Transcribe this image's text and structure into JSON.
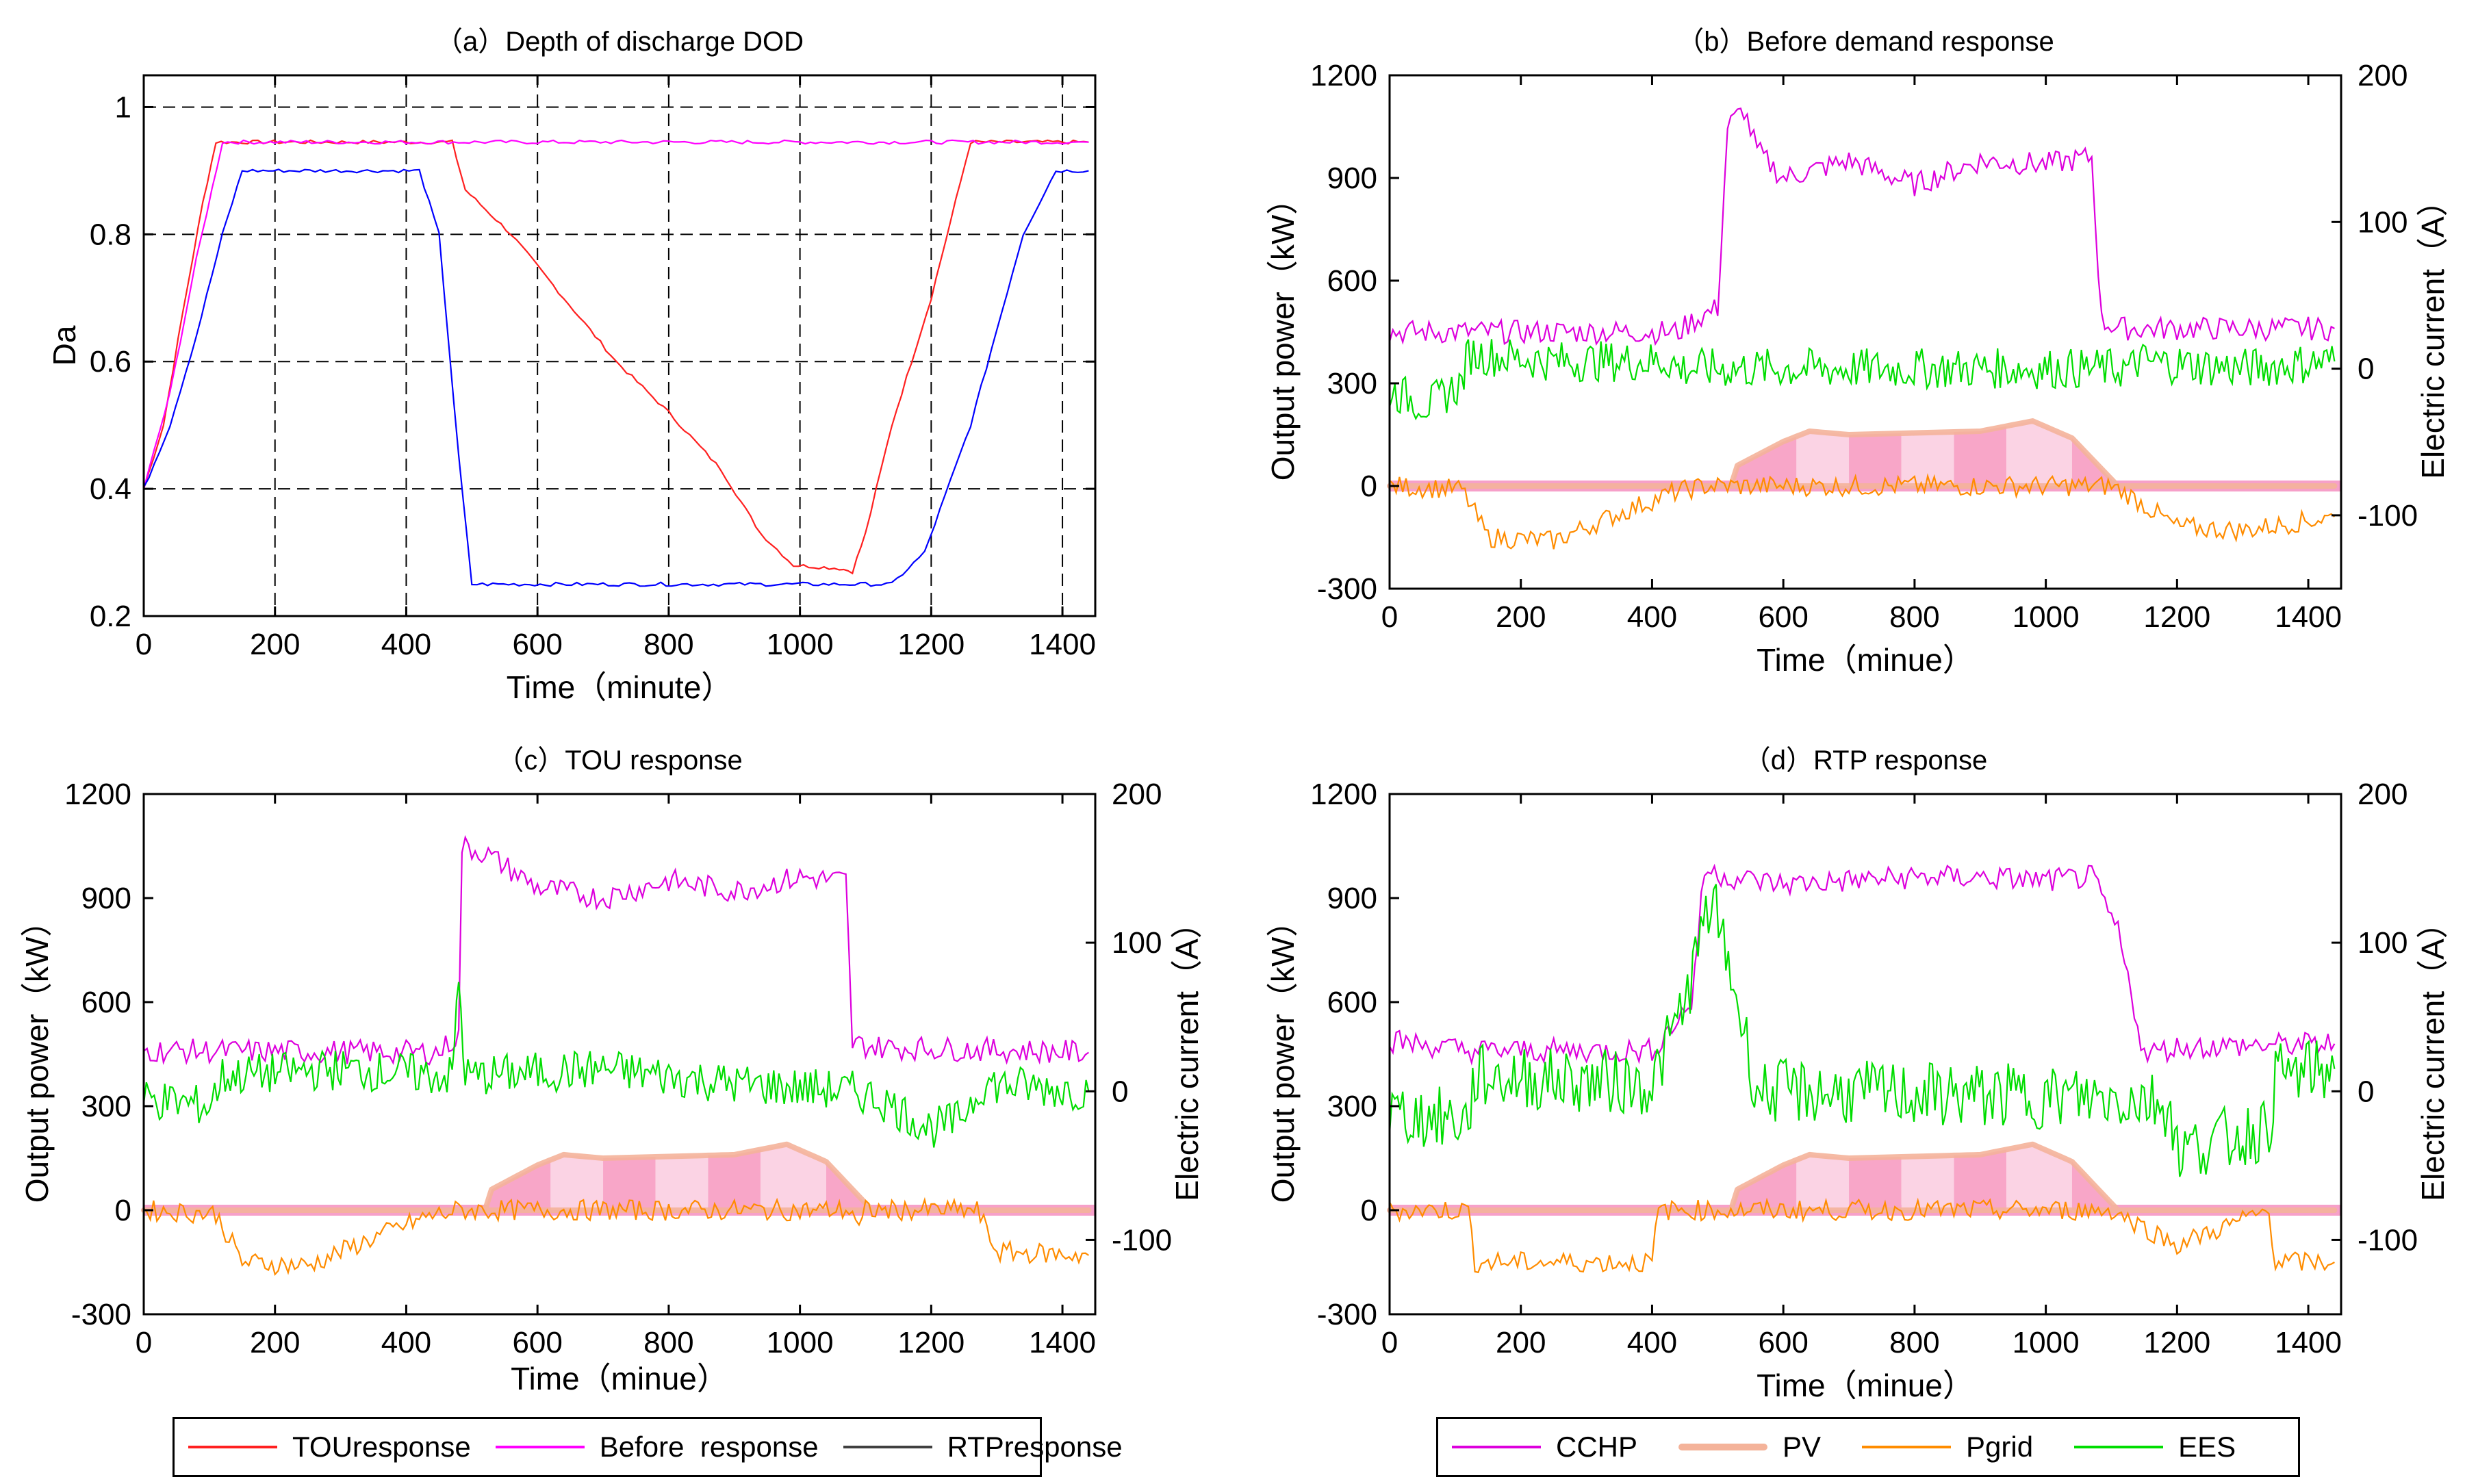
{
  "colors": {
    "TOU": "#ff2020",
    "Before": "#ff00ff",
    "RTP": "#0000ff",
    "CCHP": "#dd00dd",
    "PV_fill_dark": "#f8a6c8",
    "PV_fill_light": "#fbd3e4",
    "PV_edge": "#f4b39a",
    "Pgrid": "#ff8c00",
    "EES": "#00dd00"
  },
  "chart_data": [
    {
      "id": "a",
      "type": "line",
      "title": "（a）Depth of discharge DOD",
      "xlabel": "Time（minute）",
      "ylabel": "Da",
      "xlim": [
        0,
        1450
      ],
      "ylim": [
        0.2,
        1.05
      ],
      "xticks": [
        0,
        200,
        400,
        600,
        800,
        1000,
        1200,
        1400
      ],
      "yticks": [
        0.2,
        0.4,
        0.6,
        0.8,
        1
      ],
      "ytick_labels": [
        "0.2",
        "0.4",
        "0.6",
        "0.8",
        "1"
      ],
      "grid": "dashed",
      "series": [
        {
          "name": "TOUresponse",
          "color": "#ff2020",
          "points": [
            [
              0,
              0.4
            ],
            [
              30,
              0.5
            ],
            [
              60,
              0.68
            ],
            [
              90,
              0.85
            ],
            [
              110,
              0.945
            ],
            [
              470,
              0.945
            ],
            [
              490,
              0.87
            ],
            [
              560,
              0.8
            ],
            [
              640,
              0.7
            ],
            [
              720,
              0.6
            ],
            [
              800,
              0.52
            ],
            [
              880,
              0.43
            ],
            [
              940,
              0.33
            ],
            [
              990,
              0.28
            ],
            [
              1060,
              0.275
            ],
            [
              1080,
              0.27
            ],
            [
              1100,
              0.33
            ],
            [
              1140,
              0.5
            ],
            [
              1200,
              0.7
            ],
            [
              1260,
              0.945
            ],
            [
              1440,
              0.945
            ]
          ]
        },
        {
          "name": "Before  response",
          "color": "#ff00ff",
          "points": [
            [
              0,
              0.4
            ],
            [
              40,
              0.55
            ],
            [
              80,
              0.76
            ],
            [
              120,
              0.945
            ],
            [
              1440,
              0.945
            ]
          ]
        },
        {
          "name": "RTPresponse",
          "color": "#0000ff",
          "points": [
            [
              0,
              0.4
            ],
            [
              40,
              0.5
            ],
            [
              80,
              0.64
            ],
            [
              120,
              0.8
            ],
            [
              150,
              0.9
            ],
            [
              420,
              0.9
            ],
            [
              450,
              0.8
            ],
            [
              480,
              0.45
            ],
            [
              500,
              0.25
            ],
            [
              1140,
              0.25
            ],
            [
              1190,
              0.3
            ],
            [
              1260,
              0.5
            ],
            [
              1340,
              0.8
            ],
            [
              1390,
              0.9
            ],
            [
              1440,
              0.9
            ]
          ]
        }
      ]
    },
    {
      "id": "b",
      "type": "line",
      "title": "（b）Before demand response",
      "xlabel": "Time（minue）",
      "ylabel": "Output power（kW）",
      "y2label": "Electric current（A）",
      "xlim": [
        0,
        1450
      ],
      "ylim": [
        -300,
        1200
      ],
      "y2lim": [
        -150,
        200
      ],
      "xticks": [
        0,
        200,
        400,
        600,
        800,
        1000,
        1200,
        1400
      ],
      "yticks": [
        -300,
        0,
        300,
        600,
        900,
        1200
      ],
      "y2ticks": [
        -100,
        0,
        100,
        200
      ],
      "series": [
        {
          "name": "CCHP",
          "axis": "left",
          "color": "#dd00dd",
          "points": [
            [
              0,
              450
            ],
            [
              440,
              450
            ],
            [
              460,
              480
            ],
            [
              500,
              520
            ],
            [
              515,
              1050
            ],
            [
              540,
              1100
            ],
            [
              560,
              980
            ],
            [
              600,
              900
            ],
            [
              700,
              950
            ],
            [
              800,
              880
            ],
            [
              900,
              950
            ],
            [
              1000,
              940
            ],
            [
              1070,
              960
            ],
            [
              1085,
              480
            ],
            [
              1120,
              460
            ],
            [
              1440,
              460
            ]
          ]
        },
        {
          "name": "PV",
          "axis": "left",
          "color": "#f4b39a",
          "points": [
            [
              0,
              0
            ],
            [
              520,
              0
            ],
            [
              530,
              60
            ],
            [
              600,
              130
            ],
            [
              640,
              160
            ],
            [
              700,
              150
            ],
            [
              800,
              155
            ],
            [
              900,
              160
            ],
            [
              980,
              190
            ],
            [
              1040,
              140
            ],
            [
              1080,
              60
            ],
            [
              1110,
              0
            ],
            [
              1440,
              0
            ]
          ]
        },
        {
          "name": "Pgrid",
          "axis": "left",
          "color": "#ff8c00",
          "points": [
            [
              0,
              0
            ],
            [
              110,
              -10
            ],
            [
              150,
              -150
            ],
            [
              250,
              -160
            ],
            [
              350,
              -80
            ],
            [
              430,
              -20
            ],
            [
              480,
              0
            ],
            [
              1100,
              0
            ],
            [
              1130,
              -30
            ],
            [
              1200,
              -120
            ],
            [
              1300,
              -130
            ],
            [
              1440,
              -90
            ]
          ]
        },
        {
          "name": "EES",
          "axis": "right",
          "color": "#00dd00",
          "points": [
            [
              0,
              -15
            ],
            [
              60,
              -25
            ],
            [
              110,
              -10
            ],
            [
              120,
              10
            ],
            [
              250,
              5
            ],
            [
              430,
              5
            ],
            [
              440,
              0
            ],
            [
              1130,
              0
            ],
            [
              1140,
              5
            ],
            [
              1300,
              0
            ],
            [
              1440,
              5
            ]
          ]
        }
      ]
    },
    {
      "id": "c",
      "type": "line",
      "title": "（c）TOU response",
      "xlabel": "Time（minue）",
      "ylabel": "Output power（kW）",
      "y2label": "Electric current（A）",
      "xlim": [
        0,
        1450
      ],
      "ylim": [
        -300,
        1200
      ],
      "y2lim": [
        -150,
        200
      ],
      "xticks": [
        0,
        200,
        400,
        600,
        800,
        1000,
        1200,
        1400
      ],
      "yticks": [
        -300,
        0,
        300,
        600,
        900,
        1200
      ],
      "y2ticks": [
        -100,
        0,
        100,
        200
      ],
      "series": [
        {
          "name": "CCHP",
          "axis": "left",
          "color": "#dd00dd",
          "points": [
            [
              0,
              460
            ],
            [
              450,
              455
            ],
            [
              470,
              490
            ],
            [
              480,
              500
            ],
            [
              485,
              1050
            ],
            [
              520,
              1030
            ],
            [
              600,
              930
            ],
            [
              700,
              900
            ],
            [
              800,
              950
            ],
            [
              900,
              920
            ],
            [
              1000,
              960
            ],
            [
              1070,
              950
            ],
            [
              1080,
              480
            ],
            [
              1120,
              470
            ],
            [
              1440,
              455
            ]
          ]
        },
        {
          "name": "PV",
          "axis": "left",
          "color": "#f4b39a",
          "points": [
            [
              0,
              0
            ],
            [
              520,
              0
            ],
            [
              530,
              60
            ],
            [
              600,
              130
            ],
            [
              640,
              160
            ],
            [
              700,
              150
            ],
            [
              800,
              155
            ],
            [
              900,
              160
            ],
            [
              980,
              190
            ],
            [
              1040,
              140
            ],
            [
              1080,
              60
            ],
            [
              1110,
              0
            ],
            [
              1440,
              0
            ]
          ]
        },
        {
          "name": "Pgrid",
          "axis": "left",
          "color": "#ff8c00",
          "points": [
            [
              0,
              0
            ],
            [
              110,
              -10
            ],
            [
              150,
              -150
            ],
            [
              250,
              -160
            ],
            [
              350,
              -80
            ],
            [
              430,
              -20
            ],
            [
              480,
              0
            ],
            [
              1080,
              0
            ],
            [
              1090,
              -60
            ],
            [
              1100,
              0
            ],
            [
              1270,
              0
            ],
            [
              1300,
              -120
            ],
            [
              1440,
              -130
            ]
          ]
        },
        {
          "name": "EES",
          "axis": "right",
          "color": "#00dd00",
          "points": [
            [
              0,
              -5
            ],
            [
              100,
              -10
            ],
            [
              120,
              10
            ],
            [
              300,
              15
            ],
            [
              470,
              10
            ],
            [
              480,
              75
            ],
            [
              490,
              10
            ],
            [
              700,
              15
            ],
            [
              900,
              5
            ],
            [
              1080,
              0
            ],
            [
              1120,
              -5
            ],
            [
              1200,
              -25
            ],
            [
              1240,
              -20
            ],
            [
              1280,
              5
            ],
            [
              1440,
              0
            ]
          ]
        }
      ]
    },
    {
      "id": "d",
      "type": "line",
      "title": "（d）RTP response",
      "xlabel": "Time（minue）",
      "ylabel": "Output power（kW）",
      "y2label": "Electric current（A）",
      "xlim": [
        0,
        1450
      ],
      "ylim": [
        -300,
        1200
      ],
      "y2lim": [
        -150,
        200
      ],
      "xticks": [
        0,
        200,
        400,
        600,
        800,
        1000,
        1200,
        1400
      ],
      "yticks": [
        -300,
        0,
        300,
        600,
        900,
        1200
      ],
      "y2ticks": [
        -100,
        0,
        100,
        200
      ],
      "series": [
        {
          "name": "CCHP",
          "axis": "left",
          "color": "#dd00dd",
          "points": [
            [
              0,
              490
            ],
            [
              120,
              460
            ],
            [
              400,
              460
            ],
            [
              460,
              600
            ],
            [
              480,
              980
            ],
            [
              520,
              960
            ],
            [
              600,
              940
            ],
            [
              700,
              950
            ],
            [
              800,
              960
            ],
            [
              900,
              960
            ],
            [
              1000,
              950
            ],
            [
              1070,
              960
            ],
            [
              1110,
              800
            ],
            [
              1150,
              450
            ],
            [
              1200,
              470
            ],
            [
              1440,
              480
            ]
          ]
        },
        {
          "name": "PV",
          "axis": "left",
          "color": "#f4b39a",
          "points": [
            [
              0,
              0
            ],
            [
              520,
              0
            ],
            [
              530,
              60
            ],
            [
              600,
              130
            ],
            [
              640,
              160
            ],
            [
              700,
              150
            ],
            [
              800,
              155
            ],
            [
              900,
              160
            ],
            [
              980,
              190
            ],
            [
              1040,
              140
            ],
            [
              1080,
              60
            ],
            [
              1110,
              0
            ],
            [
              1440,
              0
            ]
          ]
        },
        {
          "name": "Pgrid",
          "axis": "left",
          "color": "#ff8c00",
          "points": [
            [
              0,
              0
            ],
            [
              120,
              0
            ],
            [
              130,
              -150
            ],
            [
              400,
              -150
            ],
            [
              410,
              0
            ],
            [
              1100,
              0
            ],
            [
              1200,
              -100
            ],
            [
              1340,
              0
            ],
            [
              1350,
              -150
            ],
            [
              1440,
              -150
            ]
          ]
        },
        {
          "name": "EES",
          "axis": "right",
          "color": "#00dd00",
          "points": [
            [
              0,
              -15
            ],
            [
              120,
              -20
            ],
            [
              130,
              10
            ],
            [
              400,
              5
            ],
            [
              450,
              60
            ],
            [
              490,
              130
            ],
            [
              520,
              80
            ],
            [
              560,
              0
            ],
            [
              1150,
              -5
            ],
            [
              1190,
              -10
            ],
            [
              1200,
              -40
            ],
            [
              1340,
              -25
            ],
            [
              1350,
              10
            ],
            [
              1440,
              15
            ]
          ]
        }
      ]
    }
  ],
  "legend_a": {
    "items": [
      {
        "label": "TOUresponse",
        "color": "#ff2020"
      },
      {
        "label": "Before  response",
        "color": "#ff00ff"
      },
      {
        "label": "RTPresponse",
        "color": "#404040"
      }
    ]
  },
  "legend_b": {
    "items": [
      {
        "label": "CCHP",
        "color": "#dd00dd"
      },
      {
        "label": "PV",
        "color": "#f4b39a"
      },
      {
        "label": "Pgrid",
        "color": "#ff8c00"
      },
      {
        "label": "EES",
        "color": "#00dd00"
      }
    ]
  }
}
